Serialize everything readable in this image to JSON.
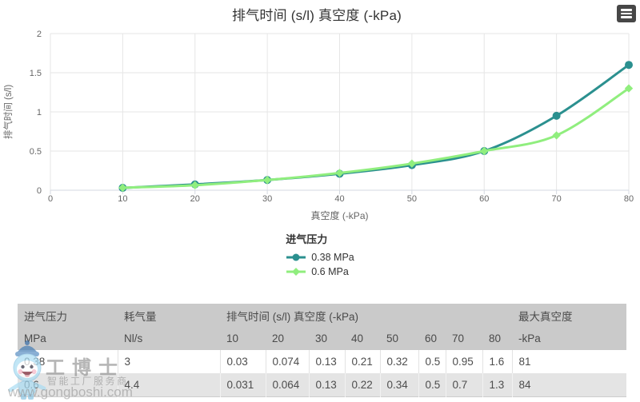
{
  "chart_data": {
    "type": "line",
    "title": "排气时间 (s/l) 真空度 (-kPa)",
    "xlabel": "真空度 (-kPa)",
    "ylabel": "排气时间 (s/l)",
    "x": [
      10,
      20,
      30,
      40,
      50,
      60,
      70,
      80
    ],
    "xlim": [
      0,
      80
    ],
    "ylim": [
      0,
      2
    ],
    "x_ticks": [
      0,
      10,
      20,
      30,
      40,
      50,
      60,
      70,
      80
    ],
    "y_ticks": [
      0,
      0.5,
      1,
      1.5,
      2
    ],
    "grid": true,
    "legend_position": "bottom",
    "legend_title": "进气压力",
    "series": [
      {
        "name": "0.38 MPa",
        "color": "#2b908f",
        "marker": "circle",
        "values": [
          0.03,
          0.074,
          0.13,
          0.21,
          0.32,
          0.5,
          0.95,
          1.6
        ]
      },
      {
        "name": "0.6 MPa",
        "color": "#90ee7e",
        "marker": "diamond",
        "values": [
          0.031,
          0.064,
          0.13,
          0.22,
          0.34,
          0.5,
          0.7,
          1.3
        ]
      }
    ]
  },
  "table": {
    "group_headers": [
      {
        "label": "进气压力",
        "span": 1
      },
      {
        "label": "耗气量",
        "span": 1
      },
      {
        "label": "排气时间 (s/l) 真空度 (-kPa)",
        "span": 8
      },
      {
        "label": "最大真空度",
        "span": 1
      }
    ],
    "unit_headers": [
      "MPa",
      "Nl/s",
      "10",
      "20",
      "30",
      "40",
      "50",
      "60",
      "70",
      "80",
      "-kPa"
    ],
    "rows": [
      [
        "0.38",
        "3",
        "0.03",
        "0.074",
        "0.13",
        "0.21",
        "0.32",
        "0.5",
        "0.95",
        "1.6",
        "81"
      ],
      [
        "0.6",
        "4.4",
        "0.031",
        "0.064",
        "0.13",
        "0.22",
        "0.34",
        "0.5",
        "0.7",
        "1.3",
        "84"
      ]
    ]
  },
  "watermark": {
    "brand": "工博士",
    "tagline": "智能工厂服务商",
    "url": "www.gongboshi.com"
  },
  "colors": {
    "series_teal": "#2b908f",
    "series_green": "#90ee7e",
    "grid_line": "#e6e6e6",
    "tick_line": "#d4d9e0",
    "axis_text": "#666666",
    "title_text": "#333333",
    "table_header_bg": "#cacaca",
    "table_alt_row_bg": "#e4e4e4",
    "table_text": "#4d4d4d"
  }
}
